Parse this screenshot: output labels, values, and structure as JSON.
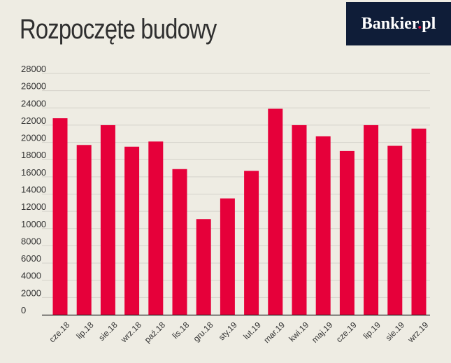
{
  "header": {
    "title": "Rozpoczęte budowy",
    "brand_main": "Bankier",
    "brand_dot": ".",
    "brand_suffix": "pl"
  },
  "colors": {
    "background": "#eeece3",
    "bar": "#e6003a",
    "brand_bg": "#0f1d38",
    "brand_dot": "#e60f3c",
    "grid": "#d4d2ca",
    "axis": "#222222"
  },
  "chart_data": {
    "type": "bar",
    "title": "Rozpoczęte budowy",
    "xlabel": "",
    "ylabel": "",
    "categories": [
      "cze.18",
      "lip.18",
      "sie.18",
      "wrz.18",
      "paź.18",
      "lis.18",
      "gru.18",
      "sty.19",
      "lut.19",
      "mar.19",
      "kwi.19",
      "maj.19",
      "cze.19",
      "lip.19",
      "sie.19",
      "wrz.19"
    ],
    "values": [
      22800,
      19700,
      22000,
      19500,
      20100,
      16900,
      11100,
      13500,
      16700,
      23900,
      22000,
      20700,
      19000,
      22000,
      19600,
      21600
    ],
    "ylim": [
      0,
      28000
    ],
    "yticks": [
      0,
      2000,
      4000,
      6000,
      8000,
      10000,
      12000,
      14000,
      16000,
      18000,
      20000,
      22000,
      24000,
      26000,
      28000
    ],
    "grid": true,
    "legend": "none"
  }
}
